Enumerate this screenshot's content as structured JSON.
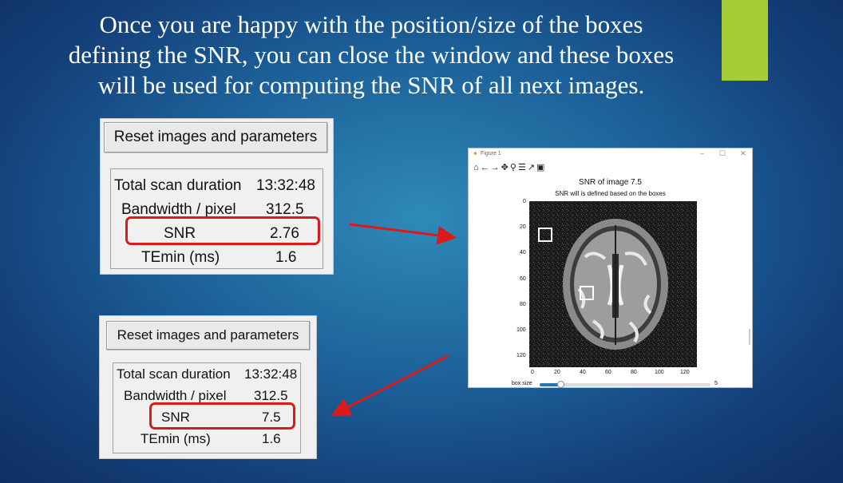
{
  "slide": {
    "title_lines": [
      "Once you are happy with the position/size of the boxes",
      "defining the SNR, you can close the window and these boxes",
      "will be used for computing the SNR of all next images."
    ],
    "accent_color": "#a6cc36",
    "arrow_color": "#dd1a1a"
  },
  "panel_top": {
    "reset_button": "Reset images and parameters",
    "rows": [
      {
        "label": "Total scan duration",
        "value": "13:32:48"
      },
      {
        "label": "Bandwidth / pixel",
        "value": "312.5"
      },
      {
        "label": "SNR",
        "value": "2.76"
      },
      {
        "label": "TEmin (ms)",
        "value": "1.6"
      }
    ]
  },
  "panel_bottom": {
    "reset_button": "Reset images and parameters",
    "rows": [
      {
        "label": "Total scan duration",
        "value": "13:32:48"
      },
      {
        "label": "Bandwidth / pixel",
        "value": "312.5"
      },
      {
        "label": "SNR",
        "value": "7.5"
      },
      {
        "label": "TEmin (ms)",
        "value": "1.6"
      }
    ]
  },
  "figure_window": {
    "window_title": "Figure 1",
    "toolbar_icons": [
      "home-icon",
      "back-arrow-icon",
      "forward-arrow-icon",
      "pan-icon",
      "zoom-icon",
      "configure-icon",
      "edit-axis-icon",
      "save-icon"
    ],
    "plot_title": "SNR of image 7.5",
    "plot_subtitle": "SNR will is defined based on the boxes",
    "y_ticks": [
      "0",
      "20",
      "40",
      "60",
      "80",
      "100",
      "120"
    ],
    "x_ticks": [
      "0",
      "20",
      "40",
      "60",
      "80",
      "100",
      "120"
    ],
    "slider_label": "box size",
    "slider_value": "5",
    "slider_fraction": 0.12
  }
}
